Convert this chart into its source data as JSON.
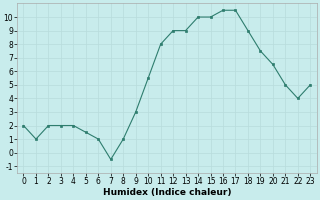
{
  "x": [
    0,
    1,
    2,
    3,
    4,
    5,
    6,
    7,
    8,
    9,
    10,
    11,
    12,
    13,
    14,
    15,
    16,
    17,
    18,
    19,
    20,
    21,
    22,
    23
  ],
  "y": [
    2,
    1,
    2,
    2,
    2,
    1.5,
    1,
    -0.5,
    1,
    3,
    5.5,
    8,
    9,
    9,
    10,
    10,
    10.5,
    10.5,
    9,
    7.5,
    6.5,
    5,
    4,
    5
  ],
  "line_color": "#2e7d6e",
  "marker_color": "#2e7d6e",
  "bg_color": "#c8ecec",
  "grid_color": "#b8dcdc",
  "xlabel": "Humidex (Indice chaleur)",
  "xlim": [
    -0.5,
    23.5
  ],
  "ylim": [
    -1.5,
    11
  ],
  "yticks": [
    -1,
    0,
    1,
    2,
    3,
    4,
    5,
    6,
    7,
    8,
    9,
    10
  ],
  "xticks": [
    0,
    1,
    2,
    3,
    4,
    5,
    6,
    7,
    8,
    9,
    10,
    11,
    12,
    13,
    14,
    15,
    16,
    17,
    18,
    19,
    20,
    21,
    22,
    23
  ],
  "xlabel_fontsize": 6.5,
  "tick_fontsize": 5.5
}
